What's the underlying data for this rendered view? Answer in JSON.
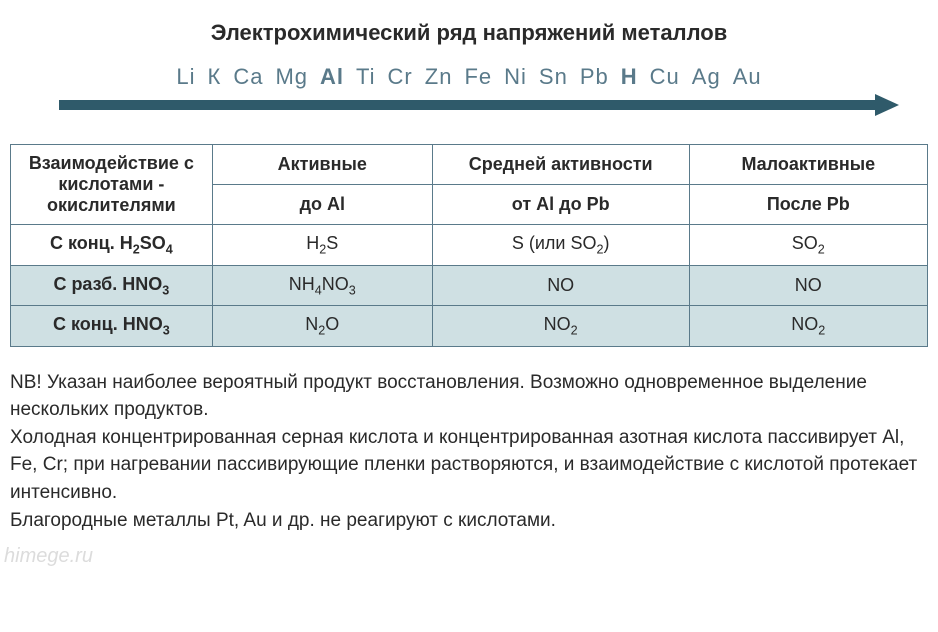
{
  "title": "Электрохимический ряд напряжений металлов",
  "series": [
    {
      "t": "Li",
      "b": false
    },
    {
      "t": "К",
      "b": false
    },
    {
      "t": "Ca",
      "b": false
    },
    {
      "t": "Mg",
      "b": false
    },
    {
      "t": "Al",
      "b": true
    },
    {
      "t": "Ti",
      "b": false
    },
    {
      "t": "Cr",
      "b": false
    },
    {
      "t": "Zn",
      "b": false
    },
    {
      "t": "Fe",
      "b": false
    },
    {
      "t": "Ni",
      "b": false
    },
    {
      "t": "Sn",
      "b": false
    },
    {
      "t": "Pb",
      "b": false
    },
    {
      "t": "H",
      "b": true
    },
    {
      "t": "Cu",
      "b": false
    },
    {
      "t": "Ag",
      "b": false
    },
    {
      "t": "Au",
      "b": false
    }
  ],
  "arrow_color": "#2f5a6a",
  "table": {
    "header_row1": {
      "col0": "Взаимодействие с кислотами - окислителями",
      "col1": "Активные",
      "col2": "Средней активности",
      "col3": "Малоактивные"
    },
    "header_row2": {
      "col1": "до  Al",
      "col2": "от Al до  Pb",
      "col3": "После Pb"
    },
    "rows": [
      {
        "label_html": "С конц. H<sub>2</sub>SO<sub>4</sub>",
        "c1_html": "H<sub>2</sub>S",
        "c2_html": "S (или SO<sub>2</sub>)",
        "c3_html": "SO<sub>2</sub>",
        "tint": false
      },
      {
        "label_html": "С разб. HNO<sub>3</sub>",
        "c1_html": "NH<sub>4</sub>NO<sub>3</sub>",
        "c2_html": "NO",
        "c3_html": "NO",
        "tint": true
      },
      {
        "label_html": "С конц. HNO<sub>3</sub>",
        "c1_html": "N<sub>2</sub>O",
        "c2_html": "NO<sub>2</sub>",
        "c3_html": "NO<sub>2</sub>",
        "tint": true
      }
    ]
  },
  "notes": [
    "NB! Указан наиболее вероятный продукт восстановления. Возможно одновременное выделение нескольких продуктов.",
    "Холодная концентрированная серная кислота и концентрированная азотная кислота пассивирует Al, Fe, Cr; при нагревании пассивирующие пленки растворяются, и взаимодействие с кислотой протекает интенсивно.",
    "Благородные металлы Pt, Au и др. не реагируют с кислотами."
  ],
  "watermark": "himege.ru"
}
